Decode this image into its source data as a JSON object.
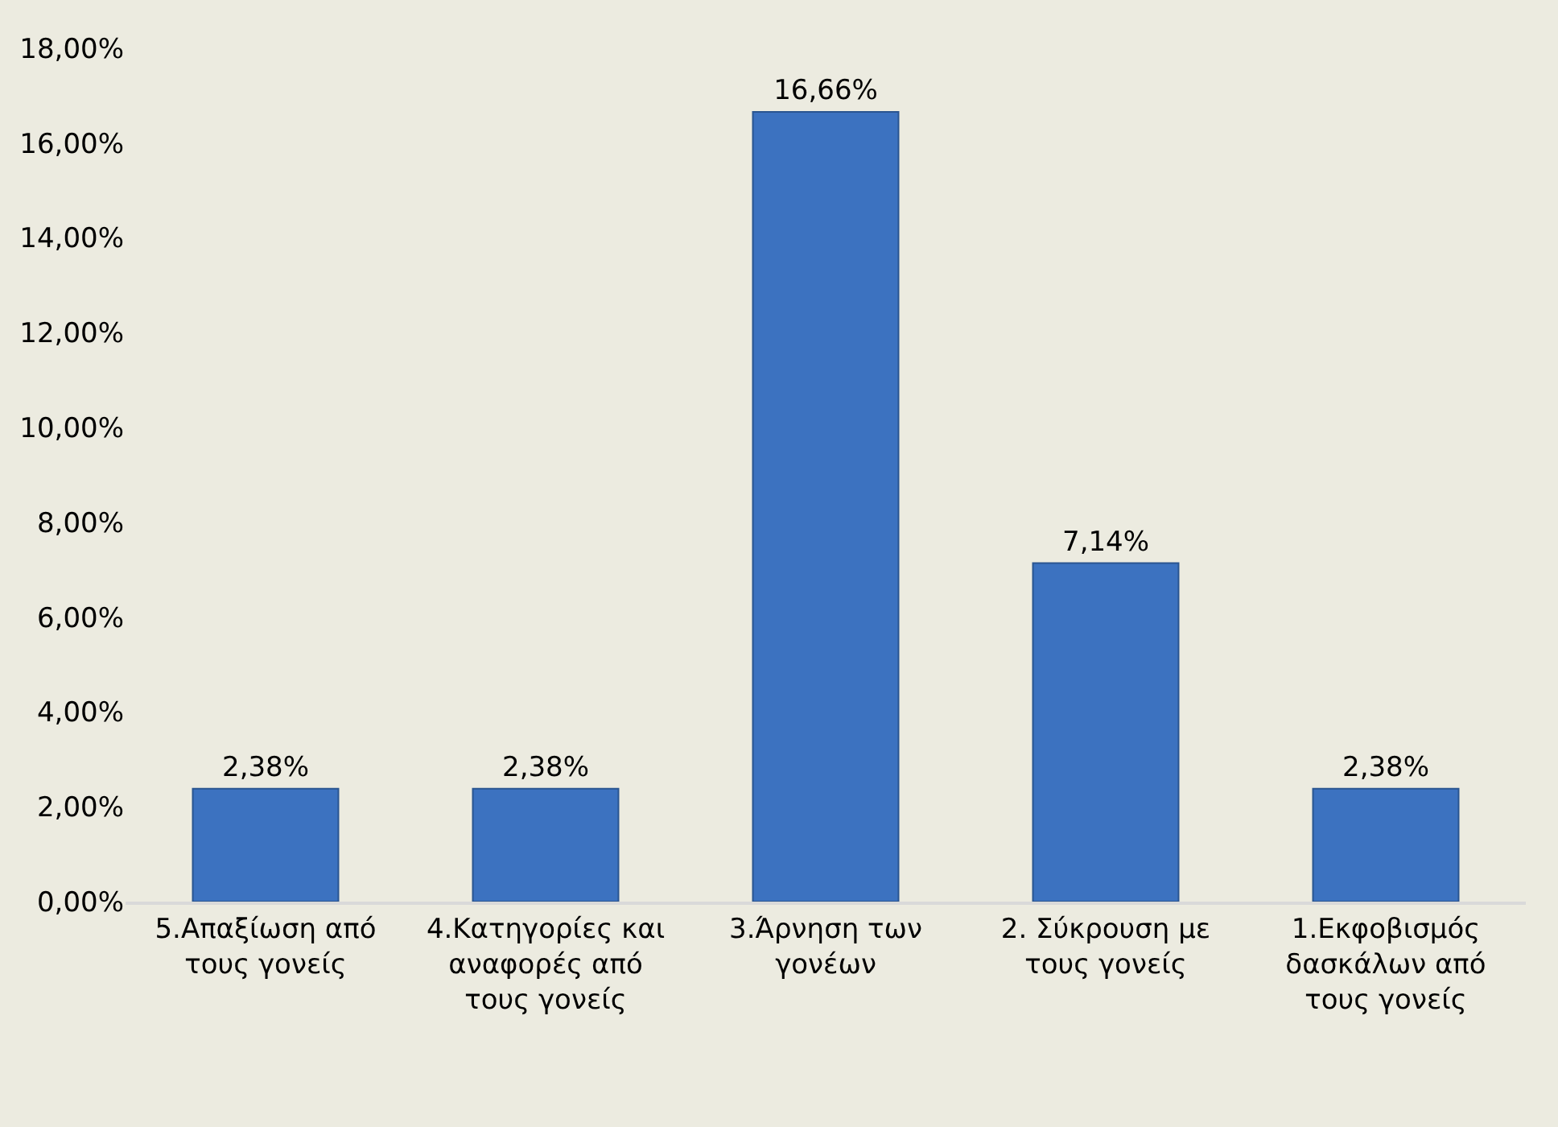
{
  "chart_data": {
    "type": "bar",
    "categories": [
      "5.Απαξίωση από τους γονείς",
      "4.Κατηγορίες και αναφορές από τους γονείς",
      "3.Άρνηση των γονέων",
      "2. Σύκρουση με τους γονείς",
      "1.Εκφοβισμός δασκάλων από τους γονείς"
    ],
    "values": [
      2.38,
      2.38,
      16.66,
      7.14,
      2.38
    ],
    "value_labels": [
      "2,38%",
      "2,38%",
      "16,66%",
      "7,14%",
      "2,38%"
    ],
    "color": "#3c72c0",
    "ylim": [
      0,
      18
    ],
    "yticks": [
      {
        "value": 0,
        "label": "0,00%"
      },
      {
        "value": 2,
        "label": "2,00%"
      },
      {
        "value": 4,
        "label": "4,00%"
      },
      {
        "value": 6,
        "label": "6,00%"
      },
      {
        "value": 8,
        "label": "8,00%"
      },
      {
        "value": 10,
        "label": "10,00%"
      },
      {
        "value": 12,
        "label": "12,00%"
      },
      {
        "value": 14,
        "label": "14,00%"
      },
      {
        "value": 16,
        "label": "16,00%"
      },
      {
        "value": 18,
        "label": "18,00%"
      }
    ],
    "grid": false
  }
}
